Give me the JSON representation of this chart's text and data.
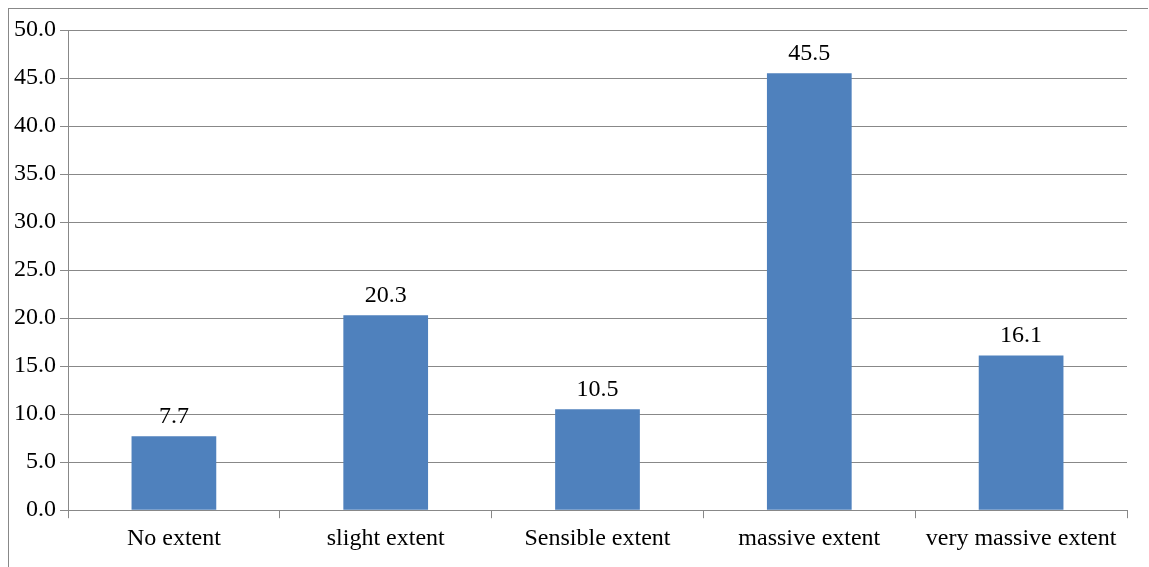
{
  "chart_data": {
    "type": "bar",
    "categories": [
      "No extent",
      "slight extent",
      "Sensible extent",
      "massive extent",
      "very massive extent"
    ],
    "values": [
      7.7,
      20.3,
      10.5,
      45.5,
      16.1
    ],
    "color": "#4f81bd",
    "ylim": [
      0,
      50
    ],
    "yticks": [
      {
        "value": 0,
        "label": "0.0"
      },
      {
        "value": 5,
        "label": "5.0"
      },
      {
        "value": 10,
        "label": "10.0"
      },
      {
        "value": 15,
        "label": "15.0"
      },
      {
        "value": 20,
        "label": "20.0"
      },
      {
        "value": 25,
        "label": "25.0"
      },
      {
        "value": 30,
        "label": "30.0"
      },
      {
        "value": 35,
        "label": "35.0"
      },
      {
        "value": 40,
        "label": "40.0"
      },
      {
        "value": 45,
        "label": "45.0"
      },
      {
        "value": 50,
        "label": "50.0"
      }
    ],
    "grid": "y",
    "data_labels": true
  }
}
